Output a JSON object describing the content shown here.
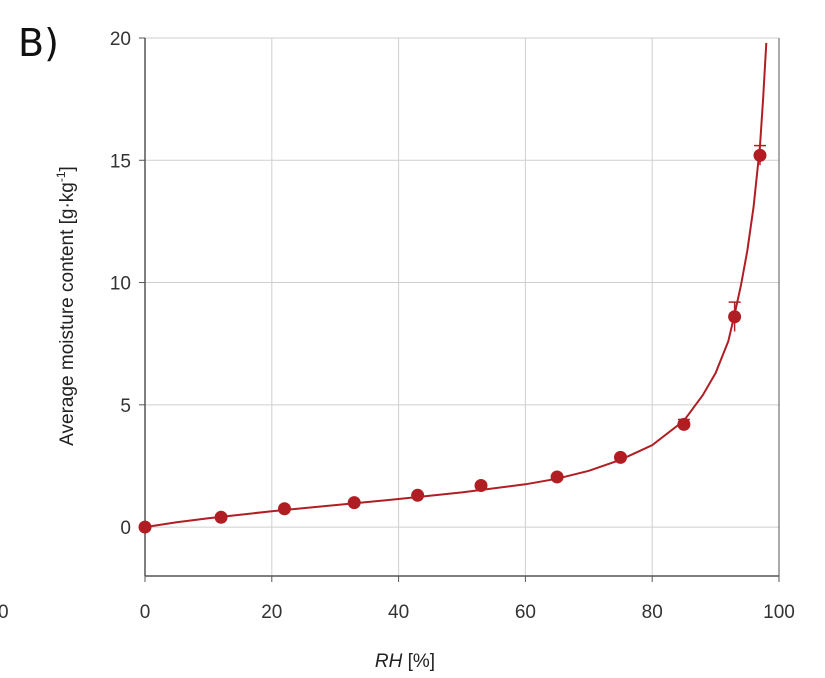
{
  "panel_label": "B)",
  "edge_fragment_label": "0",
  "colors": {
    "series": "#b01e24",
    "grid": "#cfcfcf",
    "axis": "#555555"
  },
  "chart_data": {
    "type": "scatter",
    "title": "",
    "xlabel_italic": "RH",
    "xlabel_unit": " [%]",
    "ylabel_main": "Average moisture content [g·kg",
    "ylabel_sup": "-1",
    "ylabel_close": "]",
    "xlim": [
      0,
      100
    ],
    "ylim": [
      -2,
      20
    ],
    "xticks": [
      0,
      20,
      40,
      60,
      80,
      100
    ],
    "yticks": [
      0,
      5,
      10,
      15,
      20
    ],
    "grid": true,
    "series": [
      {
        "type": "scatter-with-error-bars",
        "x": [
          0,
          12,
          22,
          33,
          43,
          53,
          65,
          75,
          85,
          93,
          97
        ],
        "y": [
          0.0,
          0.4,
          0.75,
          1.0,
          1.3,
          1.7,
          2.05,
          2.85,
          4.2,
          8.6,
          15.2
        ],
        "error": [
          0.05,
          0.05,
          0.05,
          0.05,
          0.05,
          0.05,
          0.05,
          0.1,
          0.2,
          0.6,
          0.4
        ]
      },
      {
        "type": "fit-line",
        "x": [
          0,
          5,
          10,
          20,
          30,
          40,
          50,
          60,
          65,
          70,
          75,
          80,
          85,
          88,
          90,
          92,
          93,
          94,
          95,
          96,
          97,
          97.5,
          98
        ],
        "y": [
          0.0,
          0.2,
          0.36,
          0.65,
          0.9,
          1.15,
          1.42,
          1.75,
          1.98,
          2.3,
          2.75,
          3.35,
          4.35,
          5.4,
          6.3,
          7.6,
          8.7,
          9.9,
          11.3,
          13.1,
          15.6,
          17.5,
          19.8
        ]
      }
    ]
  }
}
